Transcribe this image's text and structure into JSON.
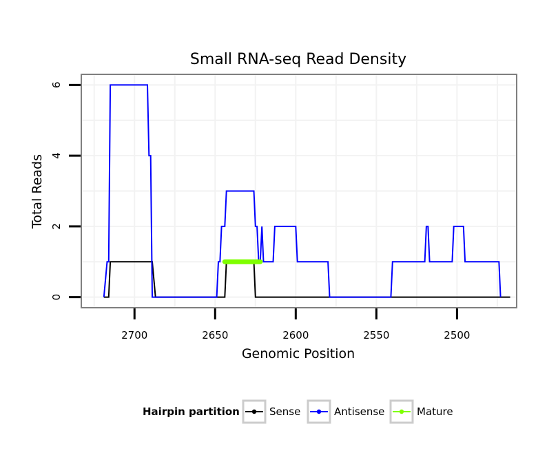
{
  "chart_data": {
    "type": "line",
    "title": "Small RNA-seq Read Density",
    "xlabel": "Genomic Position",
    "ylabel": "Total Reads",
    "xlim": [
      2733,
      2463
    ],
    "ylim": [
      -0.3,
      6.3
    ],
    "x_reversed": true,
    "x_ticks": [
      2700,
      2650,
      2600,
      2550,
      2500
    ],
    "x_tick_labels": [
      "2700",
      "2650",
      "2600",
      "2550",
      "2500"
    ],
    "y_ticks": [
      0,
      2,
      4,
      6
    ],
    "y_tick_labels": [
      "0",
      "2",
      "4",
      "6"
    ],
    "legend_title": "Hairpin partition",
    "legend_position": "bottom",
    "series": [
      {
        "name": "Sense",
        "color": "#000000",
        "x": [
          2719,
          2718,
          2716,
          2715,
          2689,
          2687,
          2687,
          2644,
          2643,
          2626,
          2625,
          2467
        ],
        "values": [
          0,
          0,
          0,
          1,
          1,
          0,
          0,
          0,
          1,
          1,
          0,
          0
        ]
      },
      {
        "name": "Antisense",
        "color": "#0000ff",
        "x": [
          2719,
          2717,
          2716,
          2715,
          2692,
          2691,
          2690,
          2689,
          2687,
          2649,
          2648,
          2647,
          2646,
          2644,
          2643,
          2626,
          2625,
          2624,
          2623,
          2622,
          2621,
          2620,
          2614,
          2613,
          2607,
          2600,
          2599,
          2593,
          2580,
          2579,
          2541,
          2540,
          2520,
          2519,
          2518,
          2517,
          2503,
          2502,
          2499,
          2496,
          2495,
          2474,
          2473
        ],
        "values": [
          0,
          1,
          1,
          6,
          6,
          4,
          4,
          0,
          0,
          0,
          1,
          1,
          2,
          2,
          3,
          3,
          2,
          2,
          1,
          1,
          2,
          1,
          1,
          2,
          2,
          2,
          1,
          1,
          1,
          0,
          0,
          1,
          1,
          2,
          2,
          1,
          1,
          2,
          2,
          2,
          1,
          1,
          0
        ]
      },
      {
        "name": "Mature",
        "color": "#7fff00",
        "x": [
          2644,
          2622
        ],
        "values": [
          1,
          1
        ]
      }
    ]
  }
}
